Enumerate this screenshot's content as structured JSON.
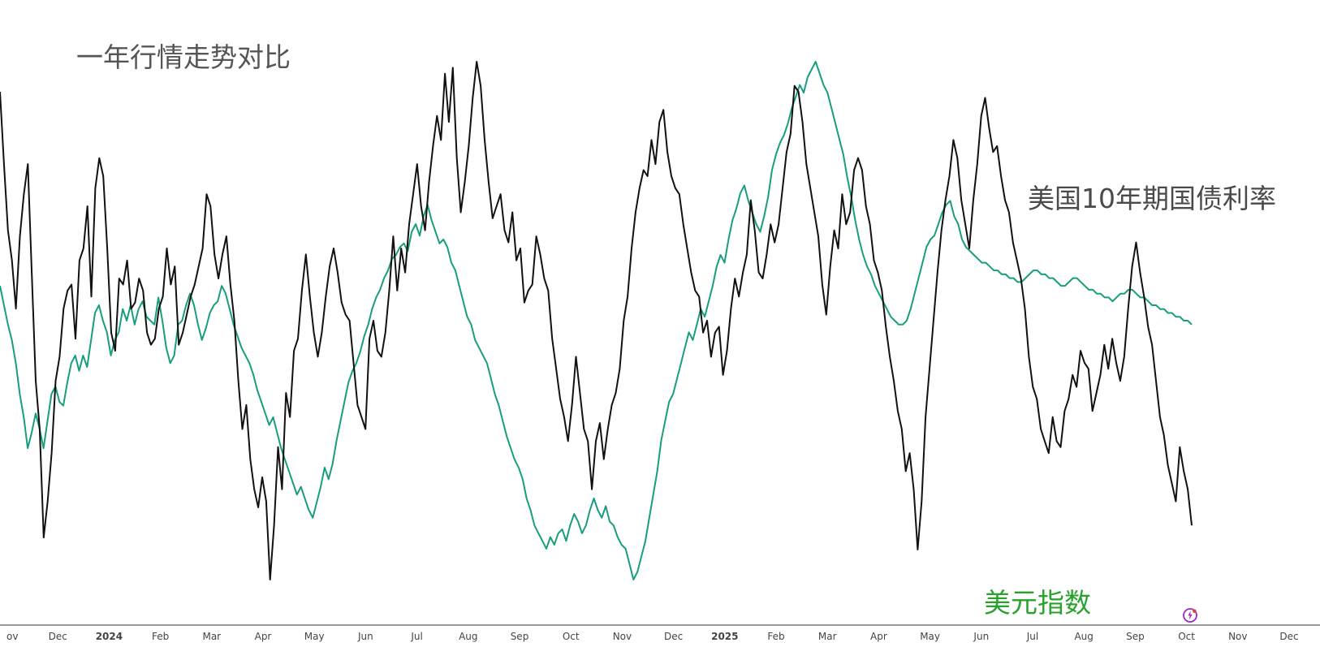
{
  "chart_data": {
    "type": "line",
    "title": "一年行情走势对比",
    "x_ticks": [
      {
        "label": "ov",
        "bold": false
      },
      {
        "label": "Dec",
        "bold": false
      },
      {
        "label": "2024",
        "bold": true
      },
      {
        "label": "Feb",
        "bold": false
      },
      {
        "label": "Mar",
        "bold": false
      },
      {
        "label": "Apr",
        "bold": false
      },
      {
        "label": "May",
        "bold": false
      },
      {
        "label": "Jun",
        "bold": false
      },
      {
        "label": "Jul",
        "bold": false
      },
      {
        "label": "Aug",
        "bold": false
      },
      {
        "label": "Sep",
        "bold": false
      },
      {
        "label": "Oct",
        "bold": false
      },
      {
        "label": "Nov",
        "bold": false
      },
      {
        "label": "Dec",
        "bold": false
      },
      {
        "label": "2025",
        "bold": true
      },
      {
        "label": "Feb",
        "bold": false
      },
      {
        "label": "Mar",
        "bold": false
      },
      {
        "label": "Apr",
        "bold": false
      },
      {
        "label": "May",
        "bold": false
      },
      {
        "label": "Jun",
        "bold": false
      },
      {
        "label": "Jul",
        "bold": false
      },
      {
        "label": "Aug",
        "bold": false
      },
      {
        "label": "Sep",
        "bold": false
      },
      {
        "label": "Oct",
        "bold": false
      },
      {
        "label": "Nov",
        "bold": false
      },
      {
        "label": "Dec",
        "bold": false
      }
    ],
    "grid": false,
    "legend": "inline labels",
    "series": [
      {
        "name": "美国10年期国债利率",
        "color": "#111111",
        "values": [
          96,
          84,
          73,
          68,
          60,
          72,
          79,
          84,
          66,
          48,
          40,
          22,
          28,
          36,
          48,
          52,
          60,
          63,
          64,
          55,
          68,
          70,
          77,
          62,
          80,
          85,
          82,
          70,
          56,
          53,
          65,
          64,
          68,
          60,
          61,
          65,
          63,
          56,
          54,
          55,
          60,
          62,
          70,
          64,
          67,
          54,
          56,
          59,
          62,
          64,
          67,
          70,
          79,
          77,
          69,
          65,
          69,
          72,
          64,
          58,
          48,
          40,
          44,
          35,
          30,
          27,
          32,
          28,
          15,
          24,
          37,
          30,
          46,
          42,
          53,
          55,
          63,
          69,
          62,
          56,
          52,
          56,
          62,
          67,
          70,
          66,
          61,
          59,
          58,
          51,
          44,
          42,
          40,
          55,
          58,
          53,
          52,
          56,
          63,
          72,
          63,
          70,
          66,
          74,
          79,
          84,
          77,
          73,
          81,
          87,
          92,
          88,
          99,
          91,
          100,
          85,
          76,
          81,
          87,
          95,
          101,
          97,
          88,
          81,
          75,
          77,
          79,
          73,
          71,
          76,
          68,
          70,
          61,
          63,
          64,
          72,
          69,
          65,
          63,
          55,
          50,
          45,
          42,
          38,
          44,
          52,
          46,
          40,
          38,
          30,
          38,
          41,
          35,
          40,
          44,
          46,
          50,
          58,
          62,
          70,
          76,
          80,
          83,
          82,
          88,
          84,
          91,
          93,
          86,
          82,
          80,
          79,
          74,
          70,
          66,
          63,
          62,
          56,
          58,
          52,
          56,
          57,
          49,
          53,
          60,
          65,
          62,
          66,
          69,
          78,
          73,
          66,
          65,
          69,
          74,
          71,
          74,
          80,
          86,
          89,
          97,
          96,
          91,
          84,
          80,
          76,
          72,
          64,
          59,
          67,
          73,
          70,
          79,
          74,
          76,
          83,
          85,
          83,
          77,
          74,
          68,
          66,
          63,
          57,
          52,
          48,
          43,
          40,
          33,
          36,
          30,
          20,
          28,
          42,
          50,
          58,
          66,
          73,
          78,
          82,
          88,
          85,
          78,
          74,
          70,
          78,
          84,
          92,
          95,
          90,
          86,
          87,
          82,
          78,
          76,
          71,
          68,
          65,
          60,
          52,
          47,
          45,
          40,
          38,
          36,
          42,
          38,
          37,
          43,
          45,
          49,
          47,
          53,
          51,
          50,
          43,
          46,
          49,
          54,
          50,
          55,
          51,
          48,
          52,
          60,
          67,
          71,
          66,
          62,
          57,
          54,
          48,
          42,
          39,
          34,
          31,
          28,
          37,
          33,
          30,
          24
        ]
      },
      {
        "name": "美元指数",
        "color": "#179e7f",
        "values": [
          80,
          75,
          70,
          66,
          60,
          52,
          46,
          38,
          42,
          47,
          43,
          38,
          45,
          52,
          54,
          50,
          49,
          55,
          60,
          62,
          58,
          62,
          59,
          66,
          73,
          75,
          71,
          68,
          62,
          66,
          68,
          74,
          71,
          75,
          70,
          74,
          76,
          72,
          71,
          70,
          77,
          71,
          64,
          60,
          62,
          70,
          71,
          75,
          78,
          75,
          70,
          66,
          69,
          73,
          75,
          76,
          80,
          78,
          74,
          70,
          67,
          64,
          62,
          60,
          57,
          53,
          50,
          47,
          44,
          46,
          42,
          38,
          35,
          32,
          29,
          26,
          28,
          25,
          22,
          20,
          24,
          28,
          33,
          30,
          34,
          40,
          45,
          50,
          55,
          58,
          60,
          63,
          67,
          70,
          74,
          77,
          79,
          82,
          84,
          87,
          88,
          90,
          91,
          89,
          94,
          96,
          93,
          98,
          101,
          97,
          94,
          91,
          92,
          90,
          86,
          84,
          80,
          76,
          72,
          70,
          66,
          64,
          62,
          60,
          56,
          52,
          49,
          45,
          41,
          38,
          35,
          33,
          30,
          25,
          22,
          18,
          16,
          14,
          12,
          15,
          13,
          16,
          17,
          14,
          18,
          21,
          19,
          16,
          18,
          22,
          25,
          22,
          20,
          23,
          19,
          18,
          15,
          13,
          12,
          8,
          4,
          6,
          10,
          14,
          20,
          26,
          32,
          40,
          45,
          50,
          52,
          56,
          60,
          64,
          68,
          66,
          70,
          74,
          72,
          76,
          80,
          85,
          88,
          86,
          92,
          97,
          100,
          104,
          106,
          102,
          99,
          96,
          94,
          98,
          103,
          110,
          114,
          117,
          119,
          122,
          126,
          129,
          132,
          130,
          134,
          136,
          138,
          135,
          132,
          130,
          126,
          122,
          118,
          114,
          108,
          103,
          97,
          92,
          88,
          85,
          83,
          80,
          78,
          76,
          74,
          72,
          71,
          70,
          70,
          71,
          74,
          78,
          82,
          86,
          90,
          92,
          93,
          96,
          99,
          101,
          102,
          98,
          96,
          92,
          90,
          89,
          88,
          87,
          86,
          86,
          85,
          84,
          84,
          83,
          83,
          82,
          82,
          81,
          81,
          82,
          83,
          84,
          84,
          83,
          83,
          82,
          82,
          81,
          80,
          80,
          81,
          82,
          82,
          81,
          80,
          79,
          79,
          78,
          78,
          77,
          77,
          76,
          77,
          78,
          78,
          79,
          79,
          78,
          77,
          77,
          76,
          75,
          75,
          74,
          74,
          73,
          73,
          72,
          72,
          71,
          71,
          70
        ]
      }
    ],
    "annotations": [
      "美国10年期国债利率",
      "美元指数"
    ]
  }
}
